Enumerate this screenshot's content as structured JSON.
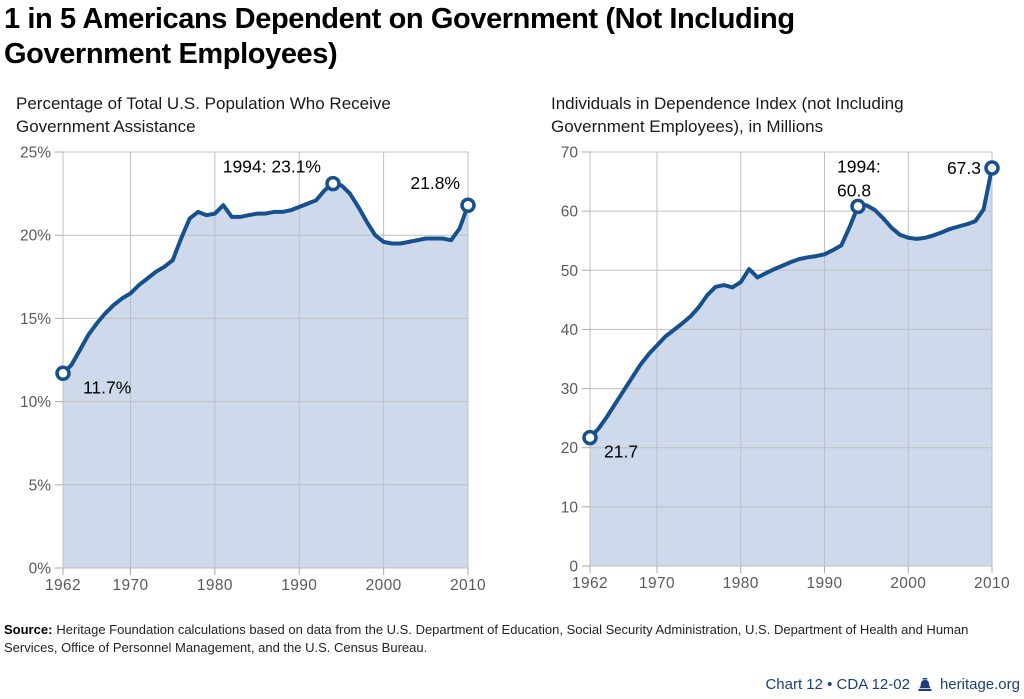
{
  "page": {
    "title": "1 in 5 Americans Dependent on Government (Not Including Government Employees)",
    "title_lines": [
      "1 in 5 Americans Dependent on Government (Not Including",
      "Government Employees)"
    ],
    "source_label": "Source:",
    "source_text": "Heritage Foundation calculations based on data from the U.S. Department of Education, Social Security Administration, U.S. Department of Health and Human Services, Office of Personnel Management, and the U.S. Census Bureau.",
    "footer": {
      "chart_ref": "Chart 12 • CDA 12-02",
      "site": "heritage.org",
      "icon": "liberty-bell-icon"
    },
    "colors": {
      "line": "#17508E",
      "area_fill": "#CEDAEB",
      "grid": "#BFBFBF",
      "axis": "#ABABAB",
      "tick_text": "#5A5A5A",
      "annotation_text": "#000000",
      "footer_navy": "#1C3E7C",
      "title_text": "#000000"
    }
  },
  "chart_data": [
    {
      "type": "area",
      "title": "Percentage of Total U.S. Population Who Receive Government Assistance",
      "title_lines": [
        "Percentage of Total U.S. Population Who Receive",
        "Government Assistance"
      ],
      "xlabel": "",
      "ylabel": "",
      "x_range": [
        1962,
        2010
      ],
      "ylim": [
        0,
        25
      ],
      "yticks": [
        0,
        5,
        10,
        15,
        20,
        25
      ],
      "ytick_labels": [
        "0%",
        "5%",
        "10%",
        "15%",
        "20%",
        "25%"
      ],
      "xticks": [
        1962,
        1970,
        1980,
        1990,
        2000,
        2010
      ],
      "xtick_labels": [
        "1962",
        "1970",
        "1980",
        "1990",
        "2000",
        "2010"
      ],
      "grid": true,
      "legend": "none",
      "years": [
        1962,
        1963,
        1964,
        1965,
        1966,
        1967,
        1968,
        1969,
        1970,
        1971,
        1972,
        1973,
        1974,
        1975,
        1976,
        1977,
        1978,
        1979,
        1980,
        1981,
        1982,
        1983,
        1984,
        1985,
        1986,
        1987,
        1988,
        1989,
        1990,
        1991,
        1992,
        1993,
        1994,
        1995,
        1996,
        1997,
        1998,
        1999,
        2000,
        2001,
        2002,
        2003,
        2004,
        2005,
        2006,
        2007,
        2008,
        2009,
        2010
      ],
      "values": [
        11.7,
        12.2,
        13.1,
        14.0,
        14.7,
        15.3,
        15.8,
        16.2,
        16.5,
        17.0,
        17.4,
        17.8,
        18.1,
        18.5,
        19.8,
        21.0,
        21.4,
        21.2,
        21.3,
        21.8,
        21.1,
        21.1,
        21.2,
        21.3,
        21.3,
        21.4,
        21.4,
        21.5,
        21.7,
        21.9,
        22.1,
        22.7,
        23.1,
        23.0,
        22.5,
        21.7,
        20.8,
        20.0,
        19.6,
        19.5,
        19.5,
        19.6,
        19.7,
        19.8,
        19.8,
        19.8,
        19.7,
        20.4,
        21.8
      ],
      "annotations": [
        {
          "year": 1962,
          "value": 11.7,
          "lines": [
            "11.7%"
          ]
        },
        {
          "year": 1994,
          "value": 23.1,
          "lines": [
            "1994: 23.1%"
          ]
        },
        {
          "year": 2010,
          "value": 21.8,
          "lines": [
            "21.8%"
          ]
        }
      ]
    },
    {
      "type": "area",
      "title": "Individuals in Dependence Index (not Including Government Employees), in Millions",
      "title_lines": [
        "Individuals in Dependence Index (not Including",
        "Government Employees), in Millions"
      ],
      "xlabel": "",
      "ylabel": "",
      "x_range": [
        1962,
        2010
      ],
      "ylim": [
        0,
        70
      ],
      "yticks": [
        0,
        10,
        20,
        30,
        40,
        50,
        60,
        70
      ],
      "ytick_labels": [
        "0",
        "10",
        "20",
        "30",
        "40",
        "50",
        "60",
        "70"
      ],
      "xticks": [
        1962,
        1970,
        1980,
        1990,
        2000,
        2010
      ],
      "xtick_labels": [
        "1962",
        "1970",
        "1980",
        "1990",
        "2000",
        "2010"
      ],
      "grid": true,
      "legend": "none",
      "years": [
        1962,
        1963,
        1964,
        1965,
        1966,
        1967,
        1968,
        1969,
        1970,
        1971,
        1972,
        1973,
        1974,
        1975,
        1976,
        1977,
        1978,
        1979,
        1980,
        1981,
        1982,
        1983,
        1984,
        1985,
        1986,
        1987,
        1988,
        1989,
        1990,
        1991,
        1992,
        1993,
        1994,
        1995,
        1996,
        1997,
        1998,
        1999,
        2000,
        2001,
        2002,
        2003,
        2004,
        2005,
        2006,
        2007,
        2008,
        2009,
        2010
      ],
      "values": [
        21.7,
        23.2,
        25.2,
        27.4,
        29.6,
        31.8,
        34.0,
        35.8,
        37.3,
        38.8,
        39.9,
        41.0,
        42.2,
        43.8,
        45.8,
        47.2,
        47.5,
        47.1,
        48.0,
        50.2,
        48.8,
        49.5,
        50.2,
        50.8,
        51.4,
        51.9,
        52.2,
        52.4,
        52.7,
        53.4,
        54.2,
        57.3,
        60.8,
        61.0,
        60.2,
        58.8,
        57.2,
        56.0,
        55.5,
        55.3,
        55.5,
        55.9,
        56.4,
        57.0,
        57.4,
        57.8,
        58.3,
        60.3,
        67.3
      ],
      "annotations": [
        {
          "year": 1962,
          "value": 21.7,
          "lines": [
            "21.7"
          ]
        },
        {
          "year": 1994,
          "value": 60.8,
          "lines": [
            "1994:",
            "60.8"
          ]
        },
        {
          "year": 2010,
          "value": 67.3,
          "lines": [
            "67.3"
          ]
        }
      ]
    }
  ]
}
